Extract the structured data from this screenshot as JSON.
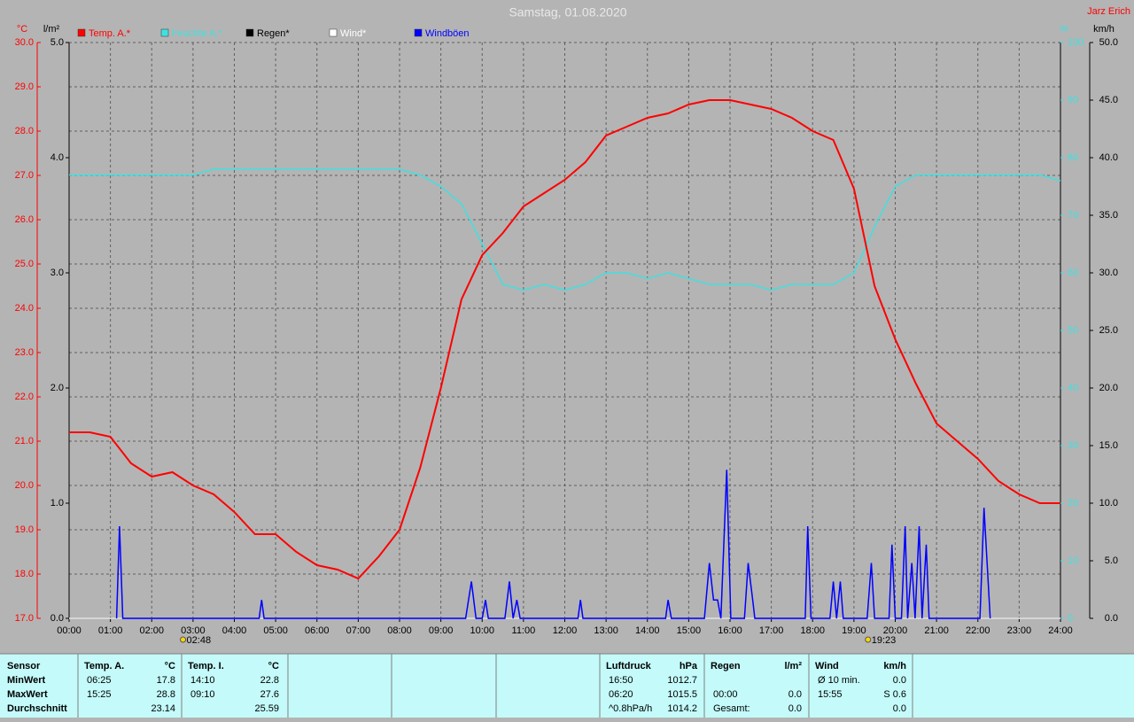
{
  "chart_data": {
    "type": "line",
    "title": "Samstag, 01.08.2020",
    "author": "Jarz Erich",
    "y_label": "°C",
    "y2_label": "l/m²",
    "y3_label": "%",
    "y4_label": "km/h",
    "xlim": [
      0,
      24
    ],
    "xticks": [
      {
        "value": 0,
        "label": "00:00"
      },
      {
        "value": 1,
        "label": "01:00"
      },
      {
        "value": 2,
        "label": "02:00"
      },
      {
        "value": 3,
        "label": "03:00"
      },
      {
        "value": 4,
        "label": "04:00"
      },
      {
        "value": 5,
        "label": "05:00"
      },
      {
        "value": 6,
        "label": "06:00"
      },
      {
        "value": 7,
        "label": "07:00"
      },
      {
        "value": 8,
        "label": "08:00"
      },
      {
        "value": 9,
        "label": "09:00"
      },
      {
        "value": 10,
        "label": "10:00"
      },
      {
        "value": 11,
        "label": "11:00"
      },
      {
        "value": 12,
        "label": "12:00"
      },
      {
        "value": 13,
        "label": "13:00"
      },
      {
        "value": 14,
        "label": "14:00"
      },
      {
        "value": 15,
        "label": "15:00"
      },
      {
        "value": 16,
        "label": "16:00"
      },
      {
        "value": 17,
        "label": "17:00"
      },
      {
        "value": 18,
        "label": "18:00"
      },
      {
        "value": 19,
        "label": "19:00"
      },
      {
        "value": 20,
        "label": "20:00"
      },
      {
        "value": 21,
        "label": "21:00"
      },
      {
        "value": 22,
        "label": "22:00"
      },
      {
        "value": 23,
        "label": "23:00"
      },
      {
        "value": 24,
        "label": "24:00"
      }
    ],
    "ylim": [
      17,
      30
    ],
    "yticks": [
      {
        "value": 17,
        "label": "17.0"
      },
      {
        "value": 18,
        "label": "18.0"
      },
      {
        "value": 19,
        "label": "19.0"
      },
      {
        "value": 20,
        "label": "20.0"
      },
      {
        "value": 21,
        "label": "21.0"
      },
      {
        "value": 22,
        "label": "22.0"
      },
      {
        "value": 23,
        "label": "23.0"
      },
      {
        "value": 24,
        "label": "24.0"
      },
      {
        "value": 25,
        "label": "25.0"
      },
      {
        "value": 26,
        "label": "26.0"
      },
      {
        "value": 27,
        "label": "27.0"
      },
      {
        "value": 28,
        "label": "28.0"
      },
      {
        "value": 29,
        "label": "29.0"
      },
      {
        "value": 30,
        "label": "30.0"
      }
    ],
    "y2lim": [
      0,
      5
    ],
    "y2ticks": [
      {
        "value": 0,
        "label": "0.0"
      },
      {
        "value": 1,
        "label": "1.0"
      },
      {
        "value": 2,
        "label": "2.0"
      },
      {
        "value": 3,
        "label": "3.0"
      },
      {
        "value": 4,
        "label": "4.0"
      },
      {
        "value": 5,
        "label": "5.0"
      }
    ],
    "y3lim": [
      0,
      100
    ],
    "y3ticks": [
      0,
      10,
      20,
      30,
      40,
      50,
      60,
      70,
      80,
      90,
      100
    ],
    "y4lim": [
      0,
      50
    ],
    "y4ticks": [
      {
        "value": 0,
        "label": "0.0"
      },
      {
        "value": 5,
        "label": "5.0"
      },
      {
        "value": 10,
        "label": "10.0"
      },
      {
        "value": 15,
        "label": "15.0"
      },
      {
        "value": 20,
        "label": "20.0"
      },
      {
        "value": 25,
        "label": "25.0"
      },
      {
        "value": 30,
        "label": "30.0"
      },
      {
        "value": 35,
        "label": "35.0"
      },
      {
        "value": 40,
        "label": "40.0"
      },
      {
        "value": 45,
        "label": "45.0"
      },
      {
        "value": 50,
        "label": "50.0"
      }
    ],
    "grid": true,
    "series": [
      {
        "name": "Temp. A.*",
        "color": "#ff0000",
        "axis": "y",
        "x": [
          0,
          0.5,
          1,
          1.5,
          2,
          2.5,
          3,
          3.5,
          4,
          4.5,
          5,
          5.5,
          6,
          6.5,
          7,
          7.5,
          8,
          8.5,
          9,
          9.5,
          10,
          10.5,
          11,
          11.5,
          12,
          12.5,
          13,
          13.5,
          14,
          14.5,
          15,
          15.5,
          16,
          16.5,
          17,
          17.5,
          18,
          18.5,
          19,
          19.5,
          20,
          20.5,
          21,
          21.5,
          22,
          22.5,
          23,
          23.5,
          24
        ],
        "values": [
          21.2,
          21.2,
          21.1,
          20.5,
          20.2,
          20.3,
          20.0,
          19.8,
          19.4,
          18.9,
          18.9,
          18.5,
          18.2,
          18.1,
          17.9,
          18.4,
          19.0,
          20.4,
          22.2,
          24.2,
          25.2,
          25.7,
          26.3,
          26.6,
          26.9,
          27.3,
          27.9,
          28.1,
          28.3,
          28.4,
          28.6,
          28.7,
          28.7,
          28.6,
          28.5,
          28.3,
          28.0,
          27.8,
          26.7,
          24.5,
          23.3,
          22.3,
          21.4,
          21.0,
          20.6,
          20.1,
          19.8,
          19.6,
          19.6
        ]
      },
      {
        "name": "Feuchte A.*",
        "color": "#40e0e0",
        "axis": "y3",
        "x": [
          0,
          0.5,
          1,
          1.5,
          2,
          2.5,
          3,
          3.5,
          4,
          4.5,
          5,
          5.5,
          6,
          6.5,
          7,
          7.5,
          8,
          8.5,
          9,
          9.5,
          10,
          10.5,
          11,
          11.5,
          12,
          12.5,
          13,
          13.5,
          14,
          14.5,
          15,
          15.5,
          16,
          16.5,
          17,
          17.5,
          18,
          18.5,
          19,
          19.5,
          20,
          20.5,
          21,
          21.5,
          22,
          22.5,
          23,
          23.5,
          24
        ],
        "values": [
          77,
          77,
          77,
          77,
          77,
          77,
          77,
          78,
          78,
          78,
          78,
          78,
          78,
          78,
          78,
          78,
          78,
          77,
          75,
          72,
          65,
          58,
          57,
          58,
          57,
          58,
          60,
          60,
          59,
          60,
          59,
          58,
          58,
          58,
          57,
          58,
          58,
          58,
          60,
          68,
          75,
          77,
          77,
          77,
          77,
          77,
          77,
          77,
          76
        ]
      },
      {
        "name": "Regen*",
        "color": "#000000",
        "axis": "y2",
        "x": [
          0,
          24
        ],
        "values": [
          0,
          0
        ]
      },
      {
        "name": "Wind*",
        "color": "#ffffff",
        "axis": "y4",
        "x": [
          0,
          24
        ],
        "values": [
          0,
          0
        ]
      },
      {
        "name": "Windböen",
        "color": "#0000ff",
        "axis": "y4",
        "x": [
          1.15,
          1.22,
          1.3,
          4.6,
          4.66,
          4.72,
          9.6,
          9.74,
          9.85,
          10.0,
          10.08,
          10.15,
          10.55,
          10.66,
          10.75,
          10.84,
          10.92,
          12.32,
          12.38,
          12.44,
          14.44,
          14.5,
          14.58,
          15.38,
          15.5,
          15.6,
          15.7,
          15.78,
          15.92,
          16.02,
          16.35,
          16.44,
          16.55,
          16.6,
          17.82,
          17.88,
          17.96,
          18.42,
          18.5,
          18.58,
          18.67,
          18.74,
          19.32,
          19.42,
          19.5,
          19.85,
          19.92,
          20.0,
          20.15,
          20.24,
          20.3,
          20.4,
          20.48,
          20.58,
          20.65,
          20.75,
          20.82,
          22.05,
          22.15,
          22.3
        ],
        "values": [
          0,
          8.0,
          0,
          0,
          1.6,
          0,
          0,
          3.2,
          0,
          0,
          1.6,
          0,
          0,
          3.2,
          0,
          1.6,
          0,
          0,
          1.6,
          0,
          0,
          1.6,
          0,
          0,
          4.8,
          1.6,
          1.6,
          0,
          12.9,
          0,
          0,
          4.8,
          1.6,
          0,
          0,
          8.0,
          0,
          0,
          3.2,
          0,
          3.2,
          0,
          0,
          4.8,
          0,
          0,
          6.4,
          0,
          0,
          8.0,
          0,
          4.8,
          0,
          8.0,
          0,
          6.4,
          0,
          0,
          9.6,
          0
        ]
      }
    ],
    "annotations": [
      {
        "x": 2.8,
        "label": "02:48"
      },
      {
        "x": 19.383,
        "label": "19:23"
      }
    ]
  },
  "stats": {
    "header": "Sensor",
    "row_labels": [
      "MinWert",
      "MaxWert",
      "Durchschnitt"
    ],
    "blocks": [
      {
        "title": "Temp. A.",
        "unit": "°C",
        "rows": [
          {
            "time": "06:25",
            "value": "17.8"
          },
          {
            "time": "15:25",
            "value": "28.8"
          },
          {
            "value": "23.14"
          }
        ]
      },
      {
        "title": "Temp. I.",
        "unit": "°C",
        "rows": [
          {
            "time": "14:10",
            "value": "22.8"
          },
          {
            "time": "09:10",
            "value": "27.6"
          },
          {
            "value": "25.59"
          }
        ]
      },
      {
        "title": "Luftdruck",
        "unit": "hPa",
        "rows": [
          {
            "time": "16:50",
            "value": "1012.7"
          },
          {
            "time": "06:20",
            "value": "1015.5"
          },
          {
            "time": "^0.8hPa/h",
            "value": "1014.2"
          }
        ]
      },
      {
        "title": "Regen",
        "unit": "l/m²",
        "rows": [
          null,
          {
            "time": "00:00",
            "value": "0.0"
          },
          {
            "time": "Gesamt:",
            "value": "0.0"
          }
        ]
      },
      {
        "title": "Wind",
        "unit": "km/h",
        "rows": [
          {
            "time": "Ø 10 min.",
            "value": "0.0"
          },
          {
            "time": "15:55",
            "value": "S 0.6"
          },
          {
            "value": "0.0"
          }
        ]
      }
    ]
  }
}
